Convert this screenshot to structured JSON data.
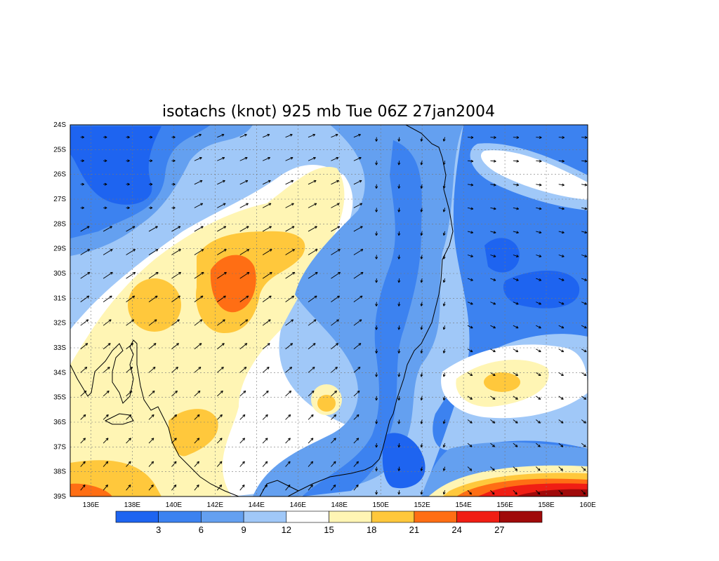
{
  "chart_data": {
    "type": "heatmap",
    "title": "isotachs (knot) 925 mb Tue 06Z 27jan2004",
    "x_ticks": [
      "136E",
      "138E",
      "140E",
      "142E",
      "144E",
      "146E",
      "148E",
      "150E",
      "152E",
      "154E",
      "156E",
      "158E",
      "160E"
    ],
    "y_ticks": [
      "24S",
      "25S",
      "26S",
      "27S",
      "28S",
      "29S",
      "30S",
      "31S",
      "32S",
      "33S",
      "34S",
      "35S",
      "36S",
      "37S",
      "38S",
      "39S"
    ],
    "xlim": [
      135,
      160
    ],
    "ylim": [
      -39,
      -24
    ],
    "grid": true,
    "legend_placement": "bottom",
    "colorbar": {
      "labels": [
        "3",
        "6",
        "9",
        "12",
        "15",
        "18",
        "21",
        "24",
        "27"
      ],
      "colors": [
        "#1e64f0",
        "#3c82f0",
        "#64a0f0",
        "#a0c8f8",
        "#ffffff",
        "#fff5b4",
        "#ffc83c",
        "#ff6e14",
        "#f01e14",
        "#a00a0a"
      ]
    },
    "wind_arrow_color": "#000000",
    "coastline_color": "#000000"
  }
}
